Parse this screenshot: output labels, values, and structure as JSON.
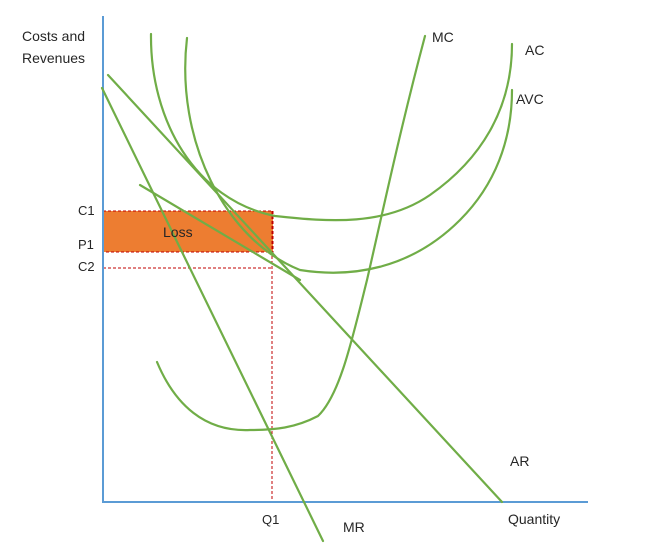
{
  "diagram": {
    "y_axis_label_line1": "Costs and",
    "y_axis_label_line2": "Revenues",
    "x_axis_label": "Quantity",
    "ticks": {
      "c1": "C1",
      "p1": "P1",
      "c2": "C2",
      "q1": "Q1"
    },
    "curves": {
      "mc": "MC",
      "ac": "AC",
      "avc": "AVC",
      "ar": "AR",
      "mr": "MR"
    },
    "area_label": "Loss",
    "colors": {
      "axis": "#5B9BD5",
      "curve": "#70AD47",
      "loss_fill": "#ED7D31",
      "guide": "#C00000",
      "text": "#262626"
    }
  }
}
